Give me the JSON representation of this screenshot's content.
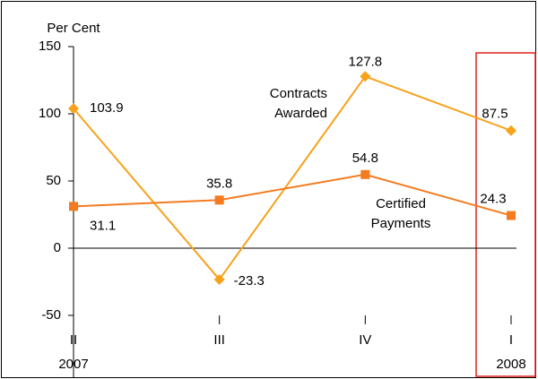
{
  "chart_data": {
    "type": "line",
    "y_axis_label": "Per Cent",
    "categories": [
      "II",
      "III",
      "IV",
      "I"
    ],
    "category_years": [
      "2007",
      null,
      null,
      "2008"
    ],
    "series": [
      {
        "name": "Contracts Awarded",
        "name_lines": [
          "Contracts",
          "Awarded"
        ],
        "color": "#f7a21b",
        "marker": "diamond",
        "values": [
          103.9,
          -23.3,
          127.8,
          87.5
        ]
      },
      {
        "name": "Certified Payments",
        "name_lines": [
          "Certified",
          "Payments"
        ],
        "color": "#f47b20",
        "marker": "square",
        "values": [
          31.1,
          35.8,
          54.8,
          24.3
        ]
      }
    ],
    "ylim": [
      -50,
      150
    ],
    "yticks": [
      -50,
      0,
      50,
      100,
      150
    ],
    "zero_line": true,
    "grid": false
  }
}
